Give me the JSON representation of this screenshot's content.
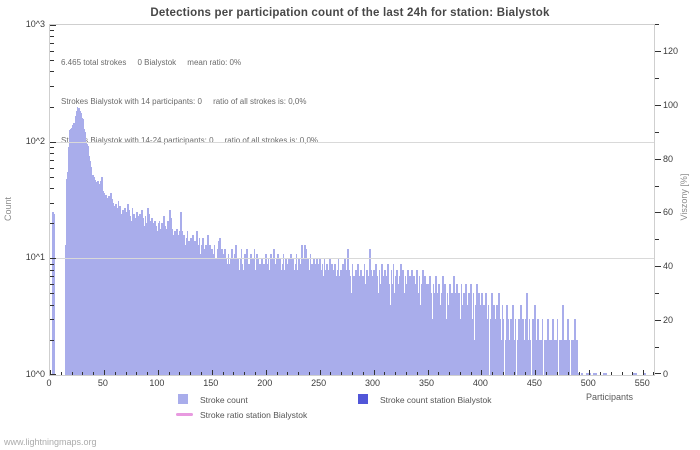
{
  "title": "Detections per participation count of the last 24h for station: Bialystok",
  "annotation": {
    "line1": "6.465 total strokes     0 Bialystok     mean ratio: 0%",
    "line2": "Strokes Bialystok with 14 participants: 0     ratio of all strokes is: 0,0%",
    "line3": "Strokes Bialystok with 14-24 participants: 0     ratio of all strokes is: 0,0%"
  },
  "axes": {
    "y_left": {
      "label": "Count",
      "ticks": [
        "10^0",
        "10^1",
        "10^2",
        "10^3"
      ]
    },
    "y_right": {
      "label": "Viszony [%]",
      "ticks": [
        0,
        20,
        40,
        60,
        80,
        100,
        120
      ]
    },
    "x": {
      "label": "Participants",
      "major_ticks": [
        0,
        50,
        100,
        150,
        200,
        250,
        300,
        350,
        400,
        450,
        500,
        550
      ]
    }
  },
  "legend": [
    {
      "swatch": "square",
      "color": "#a9adeb",
      "label": "Stroke count"
    },
    {
      "swatch": "square",
      "color": "#5156d8",
      "label": "Stroke count station Bialystok"
    },
    {
      "swatch": "line",
      "color": "#e89ae0",
      "label": "Stroke ratio station Bialystok"
    }
  ],
  "footer": "www.lightningmaps.org",
  "colors": {
    "bar": "#a9adeb",
    "station_bar": "#5156d8",
    "ratio_line": "#e89ae0",
    "grid": "#d9d9d9",
    "border": "#cfcfcf",
    "title_text": "#474747",
    "annotation_text": "#6b6b6b",
    "tick_text": "#3c3c3c",
    "axis_name_text": "#8c8c8c",
    "footer_text": "#ababab"
  },
  "chart_data": {
    "type": "bar",
    "title": "Detections per participation count of the last 24h for station: Bialystok",
    "xlabel": "Participants",
    "ylabel_left": "Count",
    "ylabel_right": "Viszony [%]",
    "y_scale": "log10",
    "ylim_left": [
      1,
      1000
    ],
    "ylim_right": [
      0,
      130
    ],
    "xlim": [
      0,
      560
    ],
    "x_major_step": 50,
    "x_minor_step": 10,
    "grid": "horizontal-decades-only",
    "legend_position": "bottom",
    "totals": {
      "total_strokes": 6465,
      "station_strokes": 0,
      "mean_ratio_percent": 0
    },
    "series": [
      {
        "name": "Stroke count",
        "color": "#a9adeb",
        "x_start": 0,
        "counts": [
          0,
          0,
          25,
          24,
          0,
          0,
          0,
          0,
          0,
          0,
          0,
          0,
          0,
          0,
          13,
          48,
          55,
          90,
          125,
          128,
          132,
          138,
          145,
          165,
          185,
          200,
          195,
          185,
          175,
          160,
          155,
          128,
          120,
          100,
          95,
          91,
          75,
          68,
          61,
          52,
          50,
          47,
          45,
          44,
          46,
          43,
          40,
          46,
          50,
          38,
          36,
          35,
          33,
          31,
          34,
          30,
          36,
          32,
          30,
          28,
          26,
          29,
          27,
          31,
          28,
          24,
          22,
          26,
          24,
          27,
          23,
          25,
          29,
          26,
          23,
          21,
          27,
          24,
          21,
          22,
          25,
          23,
          20,
          24,
          21,
          26,
          22,
          19,
          23,
          20,
          27,
          24,
          21,
          19,
          22,
          20,
          18,
          21,
          19,
          17,
          20,
          21,
          18,
          20,
          17,
          23,
          19,
          16,
          18,
          21,
          17,
          26,
          22,
          18,
          16,
          17,
          15,
          18,
          16,
          14,
          17,
          25,
          17,
          14,
          16,
          13,
          15,
          17,
          14,
          12,
          15,
          13,
          16,
          14,
          12,
          14,
          17,
          13,
          15,
          11,
          13,
          15,
          12,
          11,
          13,
          12,
          16,
          11,
          13,
          10,
          12,
          11,
          13,
          10,
          8,
          12,
          14,
          15,
          10,
          12,
          9,
          11,
          12,
          10,
          9,
          11,
          9,
          10,
          12,
          10,
          8,
          11,
          13,
          9,
          10,
          8,
          10,
          12,
          9,
          8,
          11,
          10,
          12,
          8,
          9,
          7,
          11,
          9,
          10,
          12,
          8,
          11,
          10,
          7,
          9,
          8,
          10,
          7,
          9,
          8,
          11,
          9,
          10,
          8,
          11,
          9,
          10,
          12,
          9,
          8,
          10,
          11,
          9,
          10,
          8,
          9,
          11,
          8,
          10,
          9,
          7,
          10,
          8,
          11,
          9,
          10,
          8,
          9,
          11,
          8,
          10,
          9,
          8,
          13,
          10,
          8,
          13,
          12,
          9,
          10,
          8,
          11,
          9,
          7,
          10,
          8,
          9,
          10,
          8,
          9,
          10,
          8,
          9,
          7,
          10,
          8,
          9,
          7,
          8,
          10,
          7,
          9,
          8,
          6,
          9,
          7,
          8,
          10,
          7,
          8,
          6,
          9,
          7,
          10,
          8,
          6,
          12,
          8,
          7,
          5,
          9,
          7,
          3,
          8,
          6,
          9,
          7,
          5,
          8,
          6,
          7,
          9,
          6,
          8,
          5,
          7,
          12,
          8,
          6,
          7,
          8,
          6,
          9,
          7,
          5,
          8,
          6,
          9,
          7,
          5,
          8,
          6,
          7,
          9,
          6,
          4,
          8,
          6,
          9,
          5,
          7,
          8,
          6,
          4,
          7,
          9,
          6,
          8,
          5,
          7,
          6,
          8,
          4,
          7,
          5,
          8,
          6,
          7,
          4,
          6,
          8,
          5,
          7,
          4,
          6,
          8,
          5,
          7,
          6,
          4,
          6,
          4,
          7,
          5,
          3,
          6,
          5,
          7,
          2,
          5,
          6,
          4,
          3,
          5,
          7,
          4,
          6,
          3,
          5,
          4,
          6,
          3,
          5,
          4,
          7,
          5,
          3,
          6,
          4,
          5,
          3,
          6,
          4,
          5,
          2,
          6,
          4,
          3,
          5,
          4,
          6,
          3,
          5,
          2,
          4,
          6,
          3,
          5,
          4,
          3,
          5,
          3,
          4,
          2,
          5,
          3,
          4,
          0,
          3,
          5,
          2,
          4,
          3,
          0,
          4,
          2,
          5,
          3,
          2,
          4,
          3,
          0,
          2,
          4,
          3,
          2,
          0,
          3,
          2,
          4,
          2,
          3,
          0,
          2,
          3,
          2,
          4,
          2,
          3,
          0,
          2,
          3,
          5,
          2,
          3,
          2,
          0,
          3,
          2,
          4,
          2,
          0,
          3,
          2,
          0,
          2,
          3,
          0,
          2,
          2,
          0,
          3,
          2,
          2,
          0,
          2,
          3,
          0,
          2,
          2,
          3,
          0,
          2,
          2,
          2,
          4,
          2,
          2,
          0,
          2,
          3,
          2,
          0,
          2,
          2,
          2,
          3,
          2,
          2,
          0,
          1,
          0,
          0,
          1,
          0,
          0,
          0,
          1,
          1,
          0,
          1,
          0,
          0,
          0,
          1,
          1,
          1,
          0,
          0,
          0,
          0,
          0,
          0,
          1,
          1,
          1,
          0,
          0,
          0,
          0,
          0,
          0,
          0,
          0,
          0,
          0,
          0,
          0,
          0,
          0,
          0,
          0,
          0,
          0,
          0,
          0,
          0,
          0,
          0,
          0,
          1,
          1,
          1,
          1,
          0,
          0,
          0,
          0,
          0,
          0,
          1,
          1,
          0,
          0,
          0,
          0,
          0,
          0,
          0,
          0,
          0
        ]
      },
      {
        "name": "Stroke count station Bialystok",
        "color": "#5156d8",
        "total": 0,
        "counts_all_zero": true
      },
      {
        "name": "Stroke ratio station Bialystok",
        "color": "#e89ae0",
        "type": "line",
        "mean_ratio_percent": 0,
        "visible": false
      }
    ]
  }
}
